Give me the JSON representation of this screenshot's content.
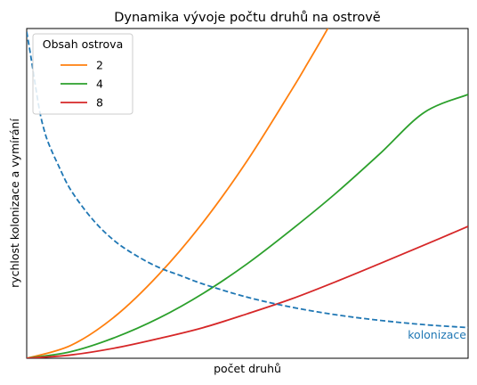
{
  "chart_data": {
    "type": "line",
    "title": "Dynamika vývoje počtu druhů na ostrově",
    "xlabel": "počet druhů",
    "ylabel": "rychlost kolonizace a vymírání",
    "xlim": [
      0,
      10
    ],
    "ylim": [
      0,
      10
    ],
    "grid": false,
    "show_ticks": false,
    "legend": {
      "title": "Obsah ostrova",
      "position": "top-left"
    },
    "colonization": {
      "label": "kolonizace",
      "color": "#1f77b4",
      "style": "dashed",
      "points": [
        [
          0.0,
          9.9
        ],
        [
          0.1,
          9.1
        ],
        [
          0.2,
          8.25
        ],
        [
          0.3,
          7.45
        ],
        [
          0.4,
          6.9
        ],
        [
          0.5,
          6.5
        ],
        [
          0.7,
          5.9
        ],
        [
          1.0,
          5.1
        ],
        [
          1.5,
          4.2
        ],
        [
          2.0,
          3.55
        ],
        [
          2.5,
          3.1
        ],
        [
          3.0,
          2.75
        ],
        [
          3.5,
          2.5
        ],
        [
          4.0,
          2.25
        ],
        [
          5.0,
          1.85
        ],
        [
          6.0,
          1.55
        ],
        [
          7.0,
          1.32
        ],
        [
          8.0,
          1.15
        ],
        [
          9.0,
          1.02
        ],
        [
          10.0,
          0.93
        ]
      ]
    },
    "series": [
      {
        "name": "2",
        "color": "#ff7f0e",
        "points": [
          [
            0,
            0
          ],
          [
            1,
            0.39
          ],
          [
            2,
            1.27
          ],
          [
            3,
            2.55
          ],
          [
            4,
            4.13
          ],
          [
            5,
            6.0
          ],
          [
            6,
            8.13
          ],
          [
            6.3,
            8.8
          ],
          [
            6.8,
            9.95
          ],
          [
            7.3,
            11.2
          ]
        ]
      },
      {
        "name": "4",
        "color": "#2ca02c",
        "points": [
          [
            0,
            0
          ],
          [
            1,
            0.2
          ],
          [
            2,
            0.63
          ],
          [
            3,
            1.22
          ],
          [
            4,
            1.97
          ],
          [
            5,
            2.87
          ],
          [
            6,
            3.9
          ],
          [
            7,
            5.0
          ],
          [
            8,
            6.2
          ],
          [
            9,
            7.45
          ],
          [
            10,
            8.0
          ]
        ]
      },
      {
        "name": "8",
        "color": "#d62728",
        "points": [
          [
            0,
            0
          ],
          [
            1,
            0.1
          ],
          [
            2,
            0.31
          ],
          [
            3,
            0.6
          ],
          [
            4,
            0.93
          ],
          [
            5,
            1.35
          ],
          [
            6,
            1.8
          ],
          [
            7,
            2.32
          ],
          [
            8,
            2.87
          ],
          [
            9,
            3.43
          ],
          [
            10,
            4.0
          ]
        ]
      }
    ]
  }
}
